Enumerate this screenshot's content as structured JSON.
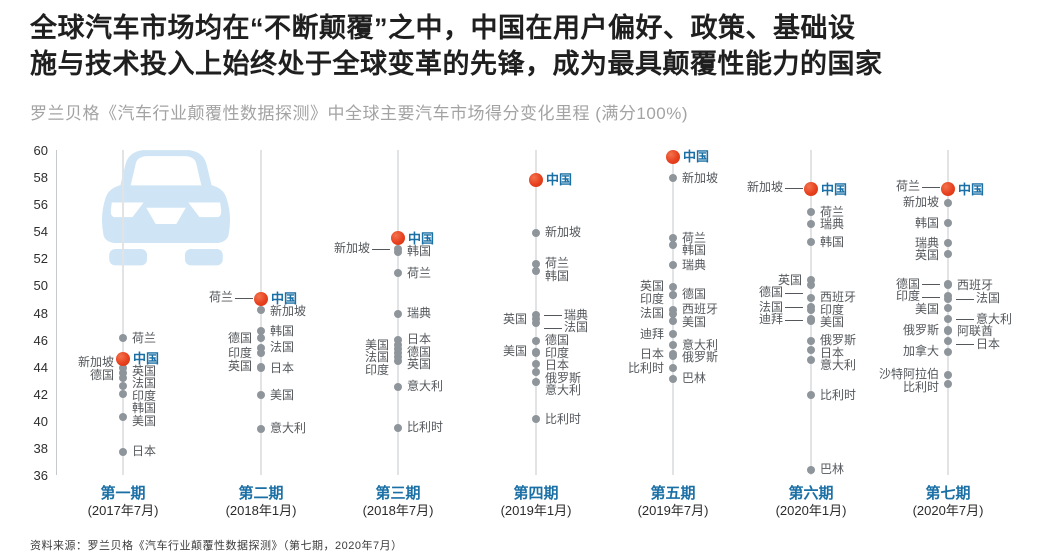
{
  "title": {
    "line1": "全球汽车市场均在“不断颠覆”之中，中国在用户偏好、政策、基础设",
    "line2": "施与技术投入上始终处于全球变革的先锋，成为最具颠覆性能力的国家"
  },
  "source_note": "资料来源：罗兰贝格《汽车行业颠覆性数据探测》（第七期，2020年7月）",
  "colors": {
    "highlight_dot": "#e7401f",
    "dot": "#8e959b",
    "country_label": "#54585c",
    "china_label": "#1a6fa5",
    "period_label": "#1a6fa5",
    "car_icon": "#cfe5f5",
    "axis_line": "#c4c9cd",
    "column_line": "#e1e3e5"
  },
  "chart_data": {
    "type": "scatter",
    "title": "罗兰贝格《汽车行业颠覆性数据探测》中全球主要汽车市场得分变化里程 (满分100%)",
    "xlabel": "",
    "ylabel": "",
    "ylim": [
      36,
      60
    ],
    "yticks": [
      60,
      58,
      56,
      54,
      52,
      50,
      48,
      46,
      44,
      42,
      40,
      38,
      36
    ],
    "grid": false,
    "highlight_country": "中国",
    "periods": [
      {
        "label": "第一期",
        "date": "(2017年7月)",
        "points": [
          {
            "country": "荷兰",
            "value": 46.1,
            "side": "right"
          },
          {
            "country": "中国",
            "value": 44.6,
            "side": "right",
            "highlight": true
          },
          {
            "country": "新加坡",
            "value": 44.3,
            "side": "left"
          },
          {
            "country": "英国",
            "value": 43.9,
            "side": "right"
          },
          {
            "country": "德国",
            "value": 43.5,
            "side": "left"
          },
          {
            "country": "法国",
            "value": 43.2,
            "side": "right"
          },
          {
            "country": "印度",
            "value": 42.6,
            "side": "right"
          },
          {
            "country": "韩国",
            "value": 42.0,
            "side": "right"
          },
          {
            "country": "美国",
            "value": 40.3,
            "side": "right"
          },
          {
            "country": "日本",
            "value": 37.7,
            "side": "right"
          }
        ]
      },
      {
        "label": "第二期",
        "date": "(2018年1月)",
        "points": [
          {
            "country": "荷兰",
            "value": 49.1,
            "side": "left",
            "leader": true
          },
          {
            "country": "中国",
            "value": 49.0,
            "side": "right",
            "highlight": true
          },
          {
            "country": "新加坡",
            "value": 48.2,
            "side": "right"
          },
          {
            "country": "韩国",
            "value": 46.6,
            "side": "right"
          },
          {
            "country": "德国",
            "value": 46.1,
            "side": "left"
          },
          {
            "country": "法国",
            "value": 45.4,
            "side": "right"
          },
          {
            "country": "印度",
            "value": 45.0,
            "side": "left"
          },
          {
            "country": "英国",
            "value": 44.0,
            "side": "left"
          },
          {
            "country": "日本",
            "value": 43.9,
            "side": "right"
          },
          {
            "country": "美国",
            "value": 41.9,
            "side": "right"
          },
          {
            "country": "意大利",
            "value": 39.4,
            "side": "right"
          }
        ]
      },
      {
        "label": "第三期",
        "date": "(2018年7月)",
        "points": [
          {
            "country": "中国",
            "value": 53.5,
            "side": "right",
            "highlight": true
          },
          {
            "country": "新加坡",
            "value": 52.7,
            "side": "left",
            "leader": true
          },
          {
            "country": "韩国",
            "value": 52.5,
            "side": "right"
          },
          {
            "country": "荷兰",
            "value": 50.9,
            "side": "right"
          },
          {
            "country": "瑞典",
            "value": 47.9,
            "side": "right"
          },
          {
            "country": "日本",
            "value": 46.0,
            "side": "right"
          },
          {
            "country": "美国",
            "value": 45.6,
            "side": "left"
          },
          {
            "country": "德国",
            "value": 45.3,
            "side": "right"
          },
          {
            "country": "法国",
            "value": 45.0,
            "side": "left"
          },
          {
            "country": "英国",
            "value": 44.7,
            "side": "right"
          },
          {
            "country": "印度",
            "value": 44.4,
            "side": "left"
          },
          {
            "country": "意大利",
            "value": 42.5,
            "side": "right"
          },
          {
            "country": "比利时",
            "value": 39.5,
            "side": "right"
          }
        ]
      },
      {
        "label": "第四期",
        "date": "(2019年1月)",
        "points": [
          {
            "country": "中国",
            "value": 57.8,
            "side": "right",
            "highlight": true
          },
          {
            "country": "新加坡",
            "value": 53.9,
            "side": "right"
          },
          {
            "country": "荷兰",
            "value": 51.6,
            "side": "right"
          },
          {
            "country": "韩国",
            "value": 51.1,
            "side": "right"
          },
          {
            "country": "瑞典",
            "value": 47.8,
            "side": "right",
            "leader": true
          },
          {
            "country": "英国",
            "value": 47.5,
            "side": "left"
          },
          {
            "country": "法国",
            "value": 47.2,
            "side": "right",
            "leader": true
          },
          {
            "country": "德国",
            "value": 45.9,
            "side": "right"
          },
          {
            "country": "美国",
            "value": 45.1,
            "side": "left"
          },
          {
            "country": "印度",
            "value": 45.0,
            "side": "right"
          },
          {
            "country": "日本",
            "value": 44.2,
            "side": "right"
          },
          {
            "country": "俄罗斯",
            "value": 43.6,
            "side": "right"
          },
          {
            "country": "意大利",
            "value": 42.9,
            "side": "right"
          },
          {
            "country": "比利时",
            "value": 40.1,
            "side": "right"
          }
        ]
      },
      {
        "label": "第五期",
        "date": "(2019年7月)",
        "points": [
          {
            "country": "中国",
            "value": 59.5,
            "side": "right",
            "highlight": true
          },
          {
            "country": "新加坡",
            "value": 57.9,
            "side": "right"
          },
          {
            "country": "荷兰",
            "value": 53.5,
            "side": "right"
          },
          {
            "country": "韩国",
            "value": 53.0,
            "side": "right"
          },
          {
            "country": "瑞典",
            "value": 51.5,
            "side": "right"
          },
          {
            "country": "英国",
            "value": 49.9,
            "side": "left"
          },
          {
            "country": "印度",
            "value": 49.3,
            "side": "left"
          },
          {
            "country": "德国",
            "value": 49.3,
            "side": "right"
          },
          {
            "country": "西班牙",
            "value": 48.2,
            "side": "right"
          },
          {
            "country": "法国",
            "value": 47.9,
            "side": "left"
          },
          {
            "country": "美国",
            "value": 47.4,
            "side": "right"
          },
          {
            "country": "迪拜",
            "value": 46.4,
            "side": "left"
          },
          {
            "country": "意大利",
            "value": 45.6,
            "side": "right"
          },
          {
            "country": "日本",
            "value": 44.9,
            "side": "left"
          },
          {
            "country": "俄罗斯",
            "value": 44.8,
            "side": "right"
          },
          {
            "country": "比利时",
            "value": 43.9,
            "side": "left"
          },
          {
            "country": "巴林",
            "value": 43.1,
            "side": "right"
          }
        ]
      },
      {
        "label": "第六期",
        "date": "(2020年1月)",
        "points": [
          {
            "country": "新加坡",
            "value": 57.2,
            "side": "left",
            "leader": true
          },
          {
            "country": "中国",
            "value": 57.1,
            "side": "right",
            "highlight": true
          },
          {
            "country": "荷兰",
            "value": 55.4,
            "side": "right"
          },
          {
            "country": "瑞典",
            "value": 54.5,
            "side": "right"
          },
          {
            "country": "韩国",
            "value": 53.2,
            "side": "right"
          },
          {
            "country": "英国",
            "value": 50.4,
            "side": "left"
          },
          {
            "country": "德国",
            "value": 50.0,
            "side": "left",
            "leader": true
          },
          {
            "country": "西班牙",
            "value": 49.1,
            "side": "right"
          },
          {
            "country": "法国",
            "value": 48.4,
            "side": "left",
            "leader": true
          },
          {
            "country": "印度",
            "value": 48.2,
            "side": "right"
          },
          {
            "country": "迪拜",
            "value": 47.5,
            "side": "left",
            "leader": true
          },
          {
            "country": "美国",
            "value": 47.4,
            "side": "right"
          },
          {
            "country": "俄罗斯",
            "value": 45.9,
            "side": "right"
          },
          {
            "country": "日本",
            "value": 45.2,
            "side": "right"
          },
          {
            "country": "意大利",
            "value": 44.5,
            "side": "right"
          },
          {
            "country": "比利时",
            "value": 41.9,
            "side": "right"
          },
          {
            "country": "巴林",
            "value": 36.4,
            "side": "right"
          }
        ]
      },
      {
        "label": "第七期",
        "date": "(2020年7月)",
        "points": [
          {
            "country": "荷兰",
            "value": 57.3,
            "side": "left",
            "leader": true
          },
          {
            "country": "中国",
            "value": 57.1,
            "side": "right",
            "highlight": true
          },
          {
            "country": "新加坡",
            "value": 56.1,
            "side": "left"
          },
          {
            "country": "韩国",
            "value": 54.6,
            "side": "left"
          },
          {
            "country": "瑞典",
            "value": 53.1,
            "side": "left"
          },
          {
            "country": "英国",
            "value": 52.3,
            "side": "left"
          },
          {
            "country": "德国",
            "value": 50.1,
            "side": "left",
            "leader": true
          },
          {
            "country": "西班牙",
            "value": 50.0,
            "side": "right"
          },
          {
            "country": "印度",
            "value": 49.2,
            "side": "left",
            "leader": true
          },
          {
            "country": "法国",
            "value": 49.0,
            "side": "right",
            "leader": true
          },
          {
            "country": "美国",
            "value": 48.3,
            "side": "left"
          },
          {
            "country": "意大利",
            "value": 47.5,
            "side": "right",
            "leader": true
          },
          {
            "country": "俄罗斯",
            "value": 46.7,
            "side": "left"
          },
          {
            "country": "阿联酋",
            "value": 46.6,
            "side": "right"
          },
          {
            "country": "日本",
            "value": 45.9,
            "side": "right",
            "leader": true
          },
          {
            "country": "加拿大",
            "value": 45.1,
            "side": "left"
          },
          {
            "country": "沙特阿拉伯",
            "value": 43.4,
            "side": "left"
          },
          {
            "country": "比利时",
            "value": 42.7,
            "side": "left"
          }
        ]
      }
    ]
  }
}
